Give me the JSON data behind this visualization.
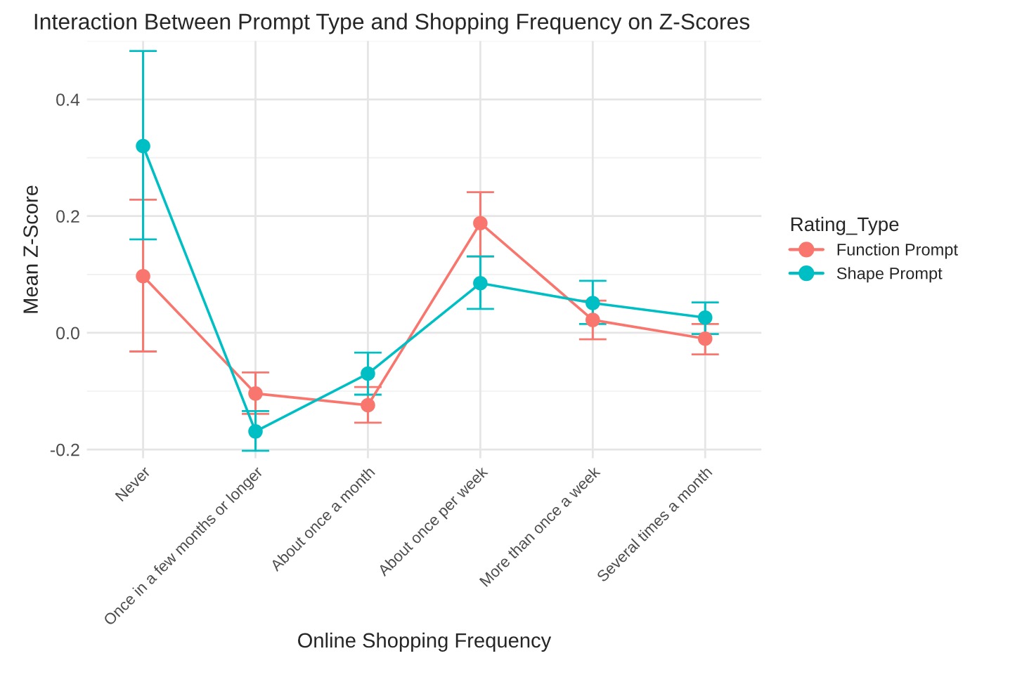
{
  "chart_data": {
    "type": "line",
    "title": "Interaction Between Prompt Type and Shopping Frequency on Z-Scores",
    "xlabel": "Online Shopping Frequency",
    "ylabel": "Mean Z-Score",
    "legend_title": "Rating_Type",
    "categories": [
      "Never",
      "Once in a few months or longer",
      "About once a month",
      "About once per week",
      "More than once a week",
      "Several times a month"
    ],
    "series": [
      {
        "name": "Function Prompt",
        "color": "#f8766d",
        "values": [
          0.097,
          -0.104,
          -0.124,
          0.188,
          0.022,
          -0.01
        ],
        "errors": [
          [
            -0.032,
            0.228
          ],
          [
            -0.139,
            -0.068
          ],
          [
            -0.154,
            -0.093
          ],
          [
            0.131,
            0.241
          ],
          [
            -0.011,
            0.055
          ],
          [
            -0.037,
            0.015
          ]
        ]
      },
      {
        "name": "Shape Prompt",
        "color": "#00bfc4",
        "values": [
          0.32,
          -0.169,
          -0.07,
          0.085,
          0.051,
          0.026
        ],
        "errors": [
          [
            0.16,
            0.483
          ],
          [
            -0.202,
            -0.134
          ],
          [
            -0.106,
            -0.034
          ],
          [
            0.041,
            0.131
          ],
          [
            0.015,
            0.089
          ],
          [
            -0.002,
            0.052
          ]
        ]
      }
    ],
    "ylim": [
      -0.215,
      0.5
    ],
    "yticks": [
      {
        "value": -0.2,
        "label": "-0.2"
      },
      {
        "value": 0.0,
        "label": "0.0"
      },
      {
        "value": 0.2,
        "label": "0.2"
      },
      {
        "value": 0.4,
        "label": "0.4"
      }
    ],
    "grid": true,
    "legend": "right",
    "marker": "circle",
    "line_style": "solid"
  }
}
